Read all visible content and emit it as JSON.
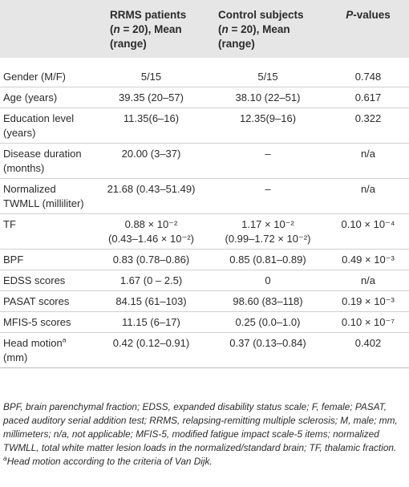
{
  "headers": {
    "col1": "",
    "col2": "RRMS patients (n = 20), Mean (range)",
    "col2_parts": [
      "RRMS patients",
      "(",
      "n",
      " = 20), Mean",
      "(range)"
    ],
    "col3_parts": [
      "Control subjects",
      "(",
      "n",
      " = 20), Mean",
      "(range)"
    ],
    "col4_parts": [
      "P",
      "-values"
    ]
  },
  "rows": [
    {
      "label": "Gender (M/F)",
      "patients": "5/15",
      "controls": "5/15",
      "p": "0.748"
    },
    {
      "label": "Age (years)",
      "patients": "39.35 (20–57)",
      "controls": "38.10 (22–51)",
      "p": "0.617"
    },
    {
      "label": "Education level (years)",
      "patients": "11.35(6–16)",
      "controls": "12.35(9–16)",
      "p": "0.322"
    },
    {
      "label": "Disease duration (months)",
      "patients": "20.00 (3–37)",
      "controls": "–",
      "p": "n/a"
    },
    {
      "label": "Normalized TWMLL (milliliter)",
      "patients": "21.68 (0.43–51.49)",
      "controls": "–",
      "p": "n/a"
    },
    {
      "label": "TF",
      "patients": "0.88 × 10⁻² (0.43–1.46 × 10⁻²)",
      "controls": "1.17 × 10⁻² (0.99–1.72 × 10⁻²)",
      "p": "0.10 × 10⁻⁴"
    },
    {
      "label": "BPF",
      "patients": "0.83 (0.78–0.86)",
      "controls": "0.85 (0.81–0.89)",
      "p": "0.49 × 10⁻³"
    },
    {
      "label": "EDSS scores",
      "patients": "1.67 (0 – 2.5)",
      "controls": "0",
      "p": "n/a"
    },
    {
      "label": "PASAT scores",
      "patients": "84.15 (61–103)",
      "controls": "98.60 (83–118)",
      "p": "0.19 × 10⁻³"
    },
    {
      "label": "MFIS-5 scores",
      "patients": "11.15 (6–17)",
      "controls": "0.25 (0.0–1.0)",
      "p": "0.10 × 10⁻⁷"
    },
    {
      "label": "Head motion",
      "label_sup": "a",
      "label_tail": "(mm)",
      "patients": "0.42 (0.12–0.91)",
      "controls": "0.37 (0.13–0.84)",
      "p": "0.402"
    }
  ],
  "tf_lines": {
    "patients_1": "0.88 × 10⁻²",
    "patients_2": "(0.43–1.46 × 10⁻²)",
    "controls_1": "1.17 × 10⁻²",
    "controls_2": "(0.99–1.72 × 10⁻²)"
  },
  "footnote": {
    "abbreviations": "BPF, brain parenchymal fraction; EDSS, expanded disability status scale; F, female; PASAT, paced auditory serial addition test; RRMS, relapsing-remitting multiple sclerosis; M, male; mm, millimeters; n/a, not applicable; MFIS-5, modified fatigue impact scale-5 items; normalized TWMLL, total white matter lesion loads in the normalized/standard brain; TF, thalamic fraction.",
    "note_marker": "a",
    "note_text": "Head motion according to the criteria of Van Dijk."
  }
}
